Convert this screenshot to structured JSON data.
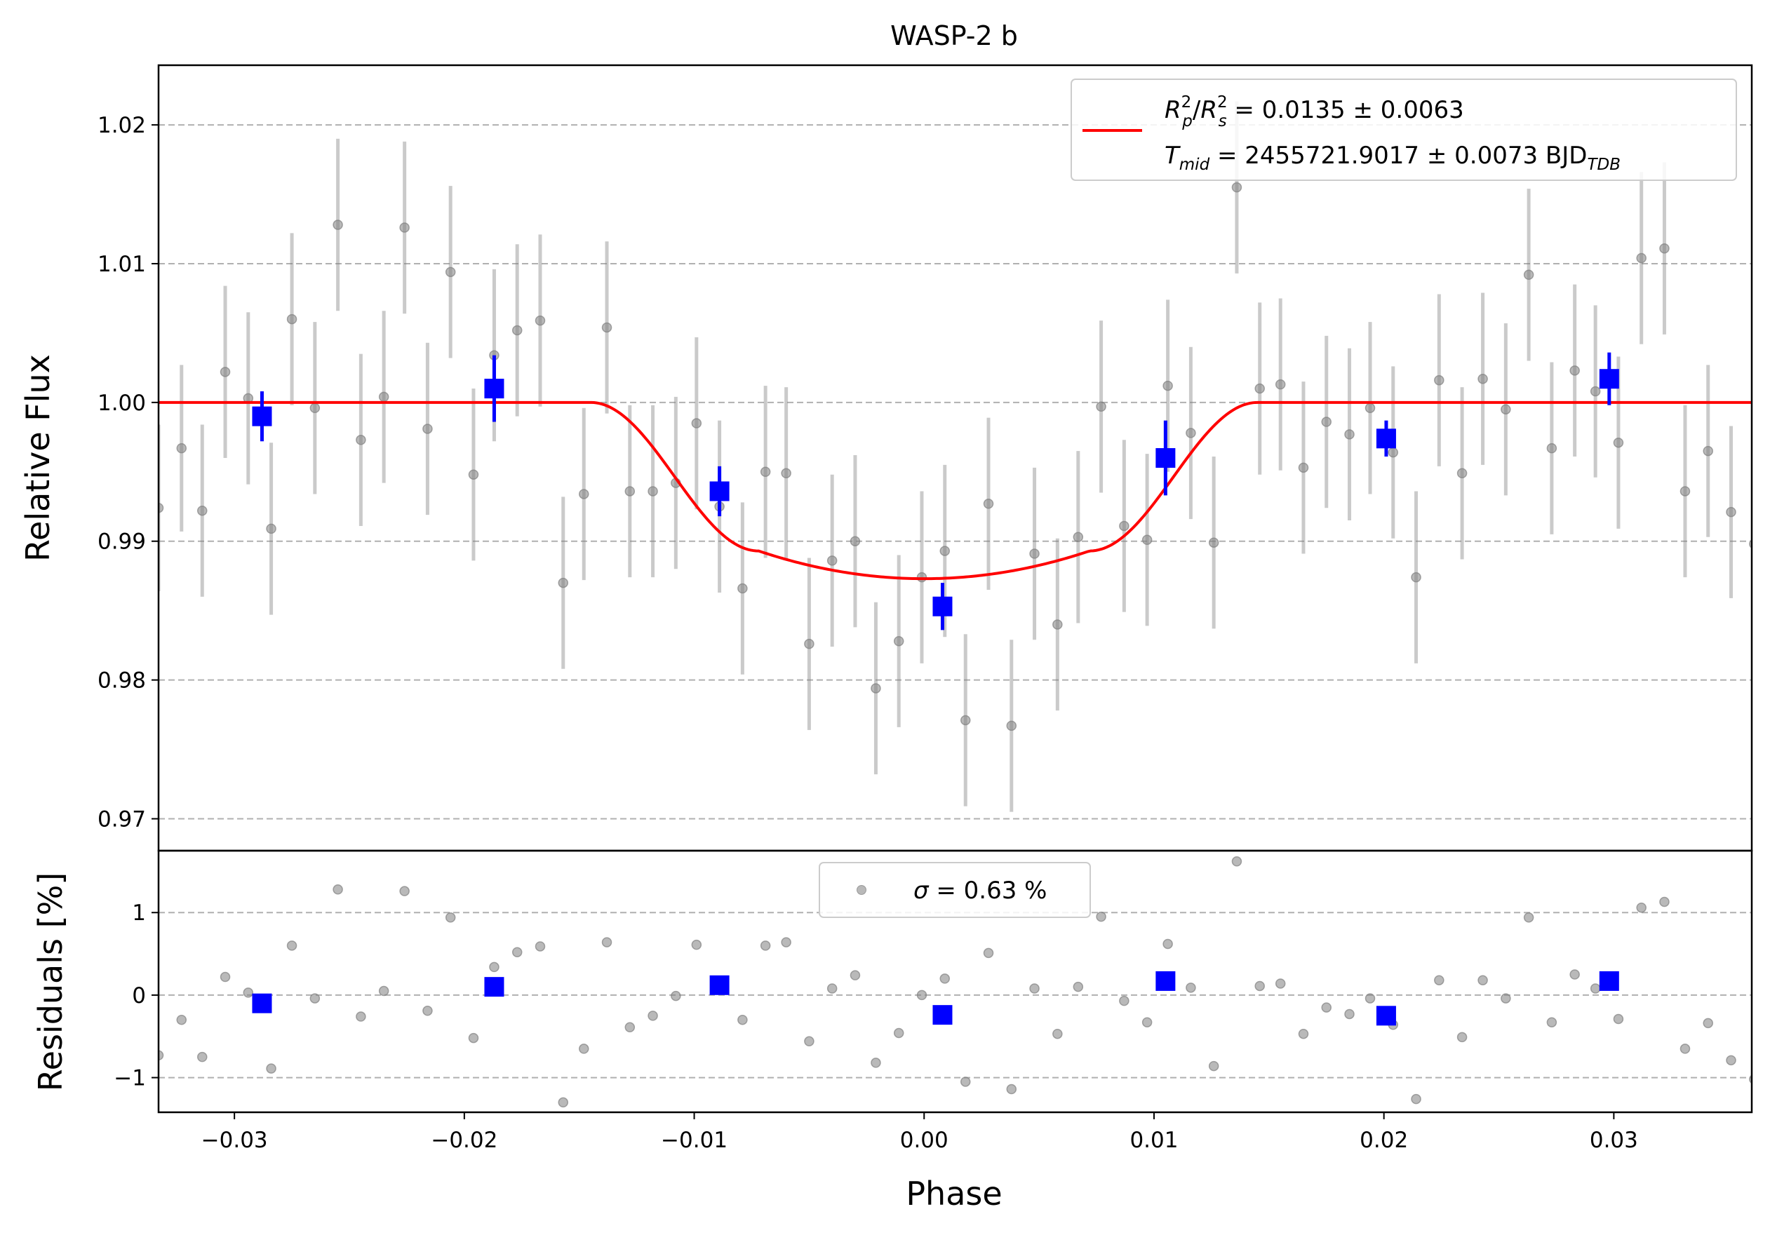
{
  "chart_data": {
    "type": "scatter",
    "title": "WASP-2 b",
    "xlabel": "Phase",
    "top_panel": {
      "ylabel": "Relative Flux",
      "xlim": [
        -0.0333,
        0.036
      ],
      "ylim": [
        0.9677,
        1.0243
      ],
      "yticks": [
        0.97,
        0.98,
        0.99,
        1.0,
        1.01,
        1.02
      ],
      "ytick_labels": [
        "0.97",
        "0.98",
        "0.99",
        "1.00",
        "1.01",
        "1.02"
      ],
      "grid": "horizontal dashed",
      "legend_position": "top-right",
      "legend_lines": [
        "R_p^2/R_s^2 = 0.0135 ± 0.0063",
        "T_mid = 2455721.9017 ± 0.0073 BJD_TDB"
      ],
      "legend": {
        "ratio_base1": "R",
        "ratio_sup1": "2",
        "ratio_sub1": "p",
        "ratio_slash": "/",
        "ratio_base2": "R",
        "ratio_sup2": "2",
        "ratio_sub2": "s",
        "ratio_value": " = 0.0135 ± 0.0063",
        "tmid_base": "T",
        "tmid_sub": "mid",
        "tmid_value": " = 2455721.9017 ± 0.0073 BJD",
        "tmid_unit_sub": "TDB"
      },
      "model": {
        "color": "#ff0000",
        "baseline": 1.0,
        "depth": 0.0127,
        "t1": -0.0145,
        "t2": -0.0072,
        "t3": 0.0072,
        "t4": 0.0145,
        "limb_curvature": 0.002
      },
      "raw": {
        "color": "#808080",
        "x": [
          -0.0333,
          -0.0323,
          -0.0314,
          -0.0304,
          -0.0294,
          -0.0284,
          -0.0275,
          -0.0265,
          -0.0255,
          -0.0245,
          -0.0235,
          -0.0226,
          -0.0216,
          -0.0206,
          -0.0196,
          -0.0187,
          -0.0177,
          -0.0167,
          -0.0157,
          -0.0148,
          -0.0138,
          -0.0128,
          -0.0118,
          -0.0108,
          -0.0099,
          -0.0089,
          -0.0079,
          -0.0069,
          -0.006,
          -0.005,
          -0.004,
          -0.003,
          -0.0021,
          -0.0011,
          -0.0001,
          0.0009,
          0.0018,
          0.0028,
          0.0038,
          0.0048,
          0.0058,
          0.0067,
          0.0077,
          0.0087,
          0.0097,
          0.0106,
          0.0116,
          0.0126,
          0.0136,
          0.0146,
          0.0155,
          0.0165,
          0.0175,
          0.0185,
          0.0194,
          0.0204,
          0.0214,
          0.0224,
          0.0234,
          0.0243,
          0.0253,
          0.0263,
          0.0273,
          0.0283,
          0.0292,
          0.0302,
          0.0312,
          0.0322,
          0.0331,
          0.0341,
          0.0351,
          0.0361
        ],
        "y": [
          0.9924,
          0.9967,
          0.9922,
          1.0022,
          1.0003,
          0.9909,
          1.006,
          0.9996,
          1.0128,
          0.9973,
          1.0004,
          1.0126,
          0.9981,
          1.0094,
          0.9948,
          1.0034,
          1.0052,
          1.0059,
          0.987,
          0.9934,
          1.0054,
          0.9936,
          0.9936,
          0.9942,
          0.9985,
          0.9925,
          0.9866,
          0.995,
          0.9949,
          0.9826,
          0.9886,
          0.99,
          0.9794,
          0.9828,
          0.9874,
          0.9893,
          0.9771,
          0.9927,
          0.9767,
          0.9891,
          0.984,
          0.9903,
          0.9997,
          0.9911,
          0.9901,
          1.0012,
          0.9978,
          0.9899,
          1.0155,
          1.001,
          1.0013,
          0.9953,
          0.9986,
          0.9977,
          0.9996,
          0.9964,
          0.9874,
          1.0016,
          0.9949,
          1.0017,
          0.9995,
          1.0092,
          0.9967,
          1.0023,
          1.0008,
          0.9971,
          1.0104,
          1.0111,
          0.9936,
          0.9965,
          0.9921,
          0.9898
        ],
        "yerr": [
          0.006,
          0.006,
          0.0062,
          0.0062,
          0.0062,
          0.0062,
          0.0062,
          0.0062,
          0.0062,
          0.0062,
          0.0062,
          0.0062,
          0.0062,
          0.0062,
          0.0062,
          0.0062,
          0.0062,
          0.0062,
          0.0062,
          0.0062,
          0.0062,
          0.0062,
          0.0062,
          0.0062,
          0.0062,
          0.0062,
          0.0062,
          0.0062,
          0.0062,
          0.0062,
          0.0062,
          0.0062,
          0.0062,
          0.0062,
          0.0062,
          0.0062,
          0.0062,
          0.0062,
          0.0062,
          0.0062,
          0.0062,
          0.0062,
          0.0062,
          0.0062,
          0.0062,
          0.0062,
          0.0062,
          0.0062,
          0.0062,
          0.0062,
          0.0062,
          0.0062,
          0.0062,
          0.0062,
          0.0062,
          0.0062,
          0.0062,
          0.0062,
          0.0062,
          0.0062,
          0.0062,
          0.0062,
          0.0062,
          0.0062,
          0.0062,
          0.0062,
          0.0062,
          0.0062,
          0.0062,
          0.0062,
          0.0062,
          0.0062
        ]
      },
      "binned": {
        "color": "#0000ff",
        "x": [
          -0.0288,
          -0.0187,
          -0.0089,
          0.0008,
          0.0105,
          0.0201,
          0.0298
        ],
        "y": [
          0.999,
          1.001,
          0.9936,
          0.9853,
          0.996,
          0.9974,
          1.0017
        ],
        "yerr": [
          0.0018,
          0.0024,
          0.0018,
          0.0017,
          0.0027,
          0.0013,
          0.0019
        ]
      }
    },
    "bottom_panel": {
      "ylabel": "Residuals [%]",
      "ylim": [
        -1.42,
        1.75
      ],
      "yticks": [
        -1,
        0,
        1
      ],
      "ytick_labels": [
        "−1",
        "0",
        "1"
      ],
      "grid": "horizontal dashed",
      "legend_position": "top-center",
      "legend_label": "σ = 0.63 %",
      "legend": {
        "sigma": "σ",
        "value": " = 0.63 %"
      },
      "raw_residuals": [
        -0.73,
        -0.3,
        -0.75,
        0.22,
        0.03,
        -0.89,
        0.6,
        -0.04,
        1.28,
        -0.26,
        0.05,
        1.26,
        -0.19,
        0.94,
        -0.52,
        0.34,
        0.52,
        0.59,
        -1.3,
        -0.65,
        0.64,
        -0.39,
        -0.25,
        -0.01,
        0.61,
        0.15,
        -0.3,
        0.6,
        0.64,
        -0.56,
        0.08,
        0.24,
        -0.82,
        -0.46,
        0.0,
        0.2,
        -1.05,
        0.51,
        -1.14,
        0.08,
        -0.47,
        0.1,
        0.95,
        -0.07,
        -0.33,
        0.62,
        0.09,
        -0.86,
        1.62,
        0.11,
        0.14,
        -0.47,
        -0.15,
        -0.23,
        -0.04,
        -0.36,
        -1.26,
        0.18,
        -0.51,
        0.18,
        -0.04,
        0.94,
        -0.33,
        0.25,
        0.08,
        -0.29,
        1.06,
        1.13,
        -0.65,
        -0.34,
        -0.79,
        -1.02
      ],
      "binned_residuals": [
        -0.1,
        0.1,
        0.12,
        -0.24,
        0.17,
        -0.25,
        0.17
      ]
    },
    "xticks": [
      -0.03,
      -0.02,
      -0.01,
      0.0,
      0.01,
      0.02,
      0.03
    ],
    "xtick_labels": [
      "−0.03",
      "−0.02",
      "−0.01",
      "0.00",
      "0.01",
      "0.02",
      "0.03"
    ]
  }
}
